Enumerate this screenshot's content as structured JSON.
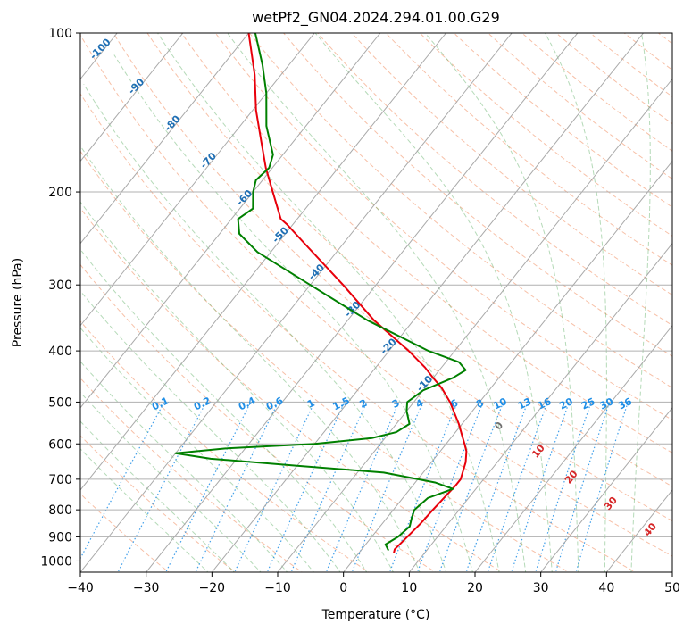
{
  "chart_data": {
    "type": "line",
    "subtype": "skew-t log-p diagram",
    "title": "wetPf2_GN04.2024.294.01.00.G29",
    "xlabel": "Temperature (°C)",
    "ylabel": "Pressure (hPa)",
    "xlim": [
      -40,
      50
    ],
    "ylim": [
      1050,
      100
    ],
    "y_scale": "log",
    "grid": true,
    "x_ticks": [
      -40,
      -30,
      -20,
      -10,
      0,
      10,
      20,
      30,
      40,
      50
    ],
    "y_ticks": [
      1000,
      900,
      800,
      700,
      600,
      500,
      400,
      300,
      200,
      100
    ],
    "colors": {
      "temperature": "#e8000b",
      "dewpoint": "#008000",
      "isotherm": "#a0a0a0",
      "dry_adiabat": "#f4a582",
      "moist_adiabat": "#5aae61",
      "mixing_ratio": "#1f8ee6",
      "isotherm_label": "#1f6fb4",
      "theta_e_label": "#d62728"
    },
    "isotherm_labels": [
      "-100",
      "-90",
      "-80",
      "-70",
      "-60",
      "-50",
      "-40",
      "-30",
      "-20",
      "-10"
    ],
    "mixing_ratio_labels": [
      "0.1",
      "0.2",
      "0.4",
      "0.6",
      "1",
      "1.5",
      "2",
      "3",
      "4",
      "6",
      "8",
      "10",
      "13",
      "16",
      "20",
      "25",
      "30",
      "36"
    ],
    "theta_e_labels": [
      "0",
      "10",
      "20",
      "30",
      "40"
    ],
    "series": [
      {
        "name": "Temperature",
        "pressure": [
          965,
          950,
          900,
          850,
          800,
          750,
          720,
          700,
          650,
          620,
          600,
          580,
          550,
          500,
          470,
          450,
          430,
          400,
          350,
          300,
          250,
          230,
          225,
          200,
          180,
          160,
          140,
          120,
          100
        ],
        "values": [
          5.3,
          5.0,
          5.4,
          5.8,
          6.0,
          6.3,
          6.5,
          6.5,
          5.2,
          4.0,
          2.8,
          1.5,
          -0.5,
          -4.5,
          -7.5,
          -10.0,
          -12.5,
          -17.0,
          -26.0,
          -35.0,
          -46.0,
          -51.0,
          -52.5,
          -57.0,
          -61.0,
          -65.0,
          -69.5,
          -74.0,
          -80.0
        ]
      },
      {
        "name": "Dewpoint",
        "pressure": [
          955,
          930,
          900,
          860,
          830,
          800,
          760,
          730,
          710,
          680,
          660,
          640,
          625,
          612,
          600,
          585,
          570,
          550,
          520,
          500,
          475,
          450,
          435,
          420,
          400,
          350,
          300,
          260,
          240,
          225,
          215,
          200,
          190,
          180,
          170,
          150,
          130,
          115,
          100
        ],
        "values": [
          4.2,
          3.0,
          4.0,
          4.5,
          3.8,
          3.2,
          3.8,
          6.5,
          3.0,
          -6.0,
          -20.0,
          -34.0,
          -40.0,
          -33.0,
          -20.0,
          -12.0,
          -9.0,
          -8.0,
          -10.0,
          -11.0,
          -10.0,
          -7.0,
          -6.0,
          -8.0,
          -14.0,
          -27.0,
          -40.0,
          -52.0,
          -57.0,
          -59.0,
          -58.0,
          -60.0,
          -61.0,
          -60.5,
          -61.5,
          -66.0,
          -70.0,
          -74.0,
          -79.0
        ]
      }
    ]
  }
}
